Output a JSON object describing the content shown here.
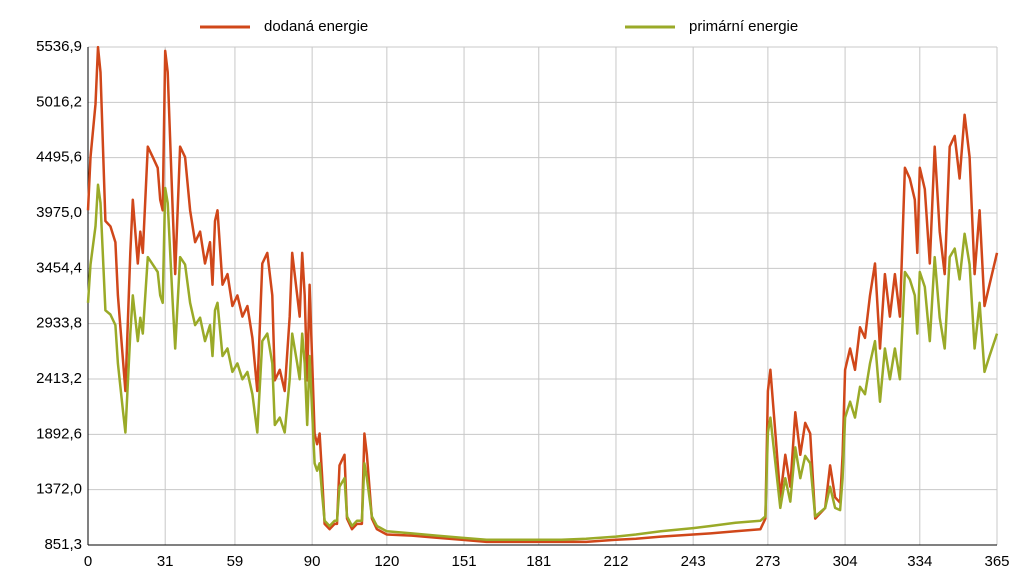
{
  "chart_data": {
    "type": "line",
    "x": [
      0,
      1,
      3,
      4,
      5,
      7,
      9,
      11,
      12,
      14,
      15,
      17,
      18,
      20,
      21,
      22,
      24,
      26,
      28,
      29,
      30,
      31,
      32,
      34,
      35,
      37,
      39,
      41,
      43,
      45,
      47,
      49,
      50,
      51,
      52,
      54,
      56,
      58,
      60,
      62,
      64,
      66,
      68,
      69,
      70,
      72,
      74,
      75,
      77,
      79,
      81,
      82,
      84,
      85,
      86,
      87,
      88,
      89,
      90,
      91,
      92,
      93,
      94,
      95,
      97,
      99,
      100,
      101,
      103,
      104,
      106,
      108,
      110,
      111,
      112,
      114,
      116,
      120,
      130,
      140,
      150,
      160,
      170,
      181,
      190,
      200,
      212,
      220,
      230,
      243,
      250,
      260,
      270,
      272,
      273,
      274,
      276,
      278,
      280,
      282,
      284,
      286,
      288,
      290,
      292,
      294,
      296,
      298,
      300,
      302,
      303,
      304,
      306,
      308,
      310,
      312,
      314,
      316,
      318,
      320,
      322,
      324,
      326,
      328,
      330,
      332,
      333,
      334,
      336,
      338,
      340,
      342,
      344,
      346,
      348,
      350,
      352,
      354,
      356,
      358,
      360,
      362,
      364,
      365
    ],
    "series": [
      {
        "name": "dodaná energie",
        "color": "#d0471a",
        "values": [
          4000,
          4500,
          5000,
          5536,
          5300,
          3900,
          3850,
          3700,
          3200,
          2600,
          2300,
          3600,
          4100,
          3500,
          3800,
          3600,
          4600,
          4500,
          4400,
          4100,
          4000,
          5500,
          5300,
          4000,
          3400,
          4600,
          4500,
          4000,
          3700,
          3800,
          3500,
          3700,
          3300,
          3900,
          4000,
          3300,
          3400,
          3100,
          3200,
          3000,
          3100,
          2800,
          2300,
          2900,
          3500,
          3600,
          3200,
          2400,
          2500,
          2300,
          3000,
          3600,
          3200,
          3000,
          3600,
          3200,
          2400,
          3300,
          2600,
          1900,
          1800,
          1900,
          1500,
          1050,
          1000,
          1050,
          1050,
          1600,
          1700,
          1100,
          1000,
          1050,
          1050,
          1900,
          1700,
          1100,
          1000,
          950,
          940,
          920,
          900,
          880,
          880,
          880,
          880,
          880,
          900,
          910,
          930,
          950,
          960,
          980,
          1000,
          1100,
          2300,
          2500,
          1900,
          1300,
          1700,
          1400,
          2100,
          1700,
          2000,
          1900,
          1100,
          1150,
          1200,
          1600,
          1300,
          1250,
          1700,
          2500,
          2700,
          2500,
          2900,
          2800,
          3200,
          3500,
          2700,
          3400,
          3000,
          3400,
          3000,
          4400,
          4300,
          4100,
          3600,
          4400,
          4200,
          3500,
          4600,
          3800,
          3400,
          4600,
          4700,
          4300,
          4900,
          4500,
          3400,
          4000,
          3100,
          3300,
          3500,
          3600
        ]
      },
      {
        "name": "primární energie",
        "color": "#9aaa28",
        "values": [
          3130,
          3490,
          3850,
          4240,
          4070,
          3060,
          3020,
          2920,
          2560,
          2120,
          1910,
          2840,
          3200,
          2770,
          2990,
          2840,
          3560,
          3490,
          3420,
          3200,
          3130,
          4210,
          4070,
          3130,
          2700,
          3560,
          3490,
          3130,
          2920,
          2990,
          2770,
          2920,
          2630,
          3060,
          3130,
          2630,
          2700,
          2480,
          2560,
          2410,
          2480,
          2270,
          1910,
          2340,
          2770,
          2840,
          2560,
          1980,
          2050,
          1910,
          2410,
          2840,
          2560,
          2410,
          2840,
          2560,
          1980,
          2630,
          2120,
          1620,
          1550,
          1620,
          1330,
          1080,
          1030,
          1080,
          1080,
          1400,
          1480,
          1120,
          1030,
          1080,
          1080,
          1620,
          1480,
          1120,
          1030,
          980,
          960,
          940,
          920,
          900,
          900,
          900,
          900,
          910,
          930,
          950,
          980,
          1010,
          1030,
          1060,
          1080,
          1120,
          1910,
          2050,
          1620,
          1200,
          1480,
          1260,
          1770,
          1480,
          1690,
          1620,
          1120,
          1160,
          1200,
          1400,
          1200,
          1180,
          1480,
          2050,
          2200,
          2050,
          2340,
          2270,
          2560,
          2770,
          2200,
          2700,
          2410,
          2700,
          2410,
          3420,
          3350,
          3200,
          2840,
          3420,
          3280,
          2770,
          3560,
          2990,
          2700,
          3560,
          3640,
          3350,
          3780,
          3490,
          2700,
          3130,
          2480,
          2630,
          2770,
          2840
        ]
      }
    ],
    "xlim": [
      0,
      365
    ],
    "xticks": [
      0,
      31,
      59,
      90,
      120,
      151,
      181,
      212,
      243,
      273,
      304,
      334,
      365
    ],
    "ylim": [
      851.3,
      5536.9
    ],
    "yticks": [
      {
        "value": 851.3,
        "label": "851,3"
      },
      {
        "value": 1372.0,
        "label": "1372,0"
      },
      {
        "value": 1892.6,
        "label": "1892,6"
      },
      {
        "value": 2413.2,
        "label": "2413,2"
      },
      {
        "value": 2933.8,
        "label": "2933,8"
      },
      {
        "value": 3454.4,
        "label": "3454,4"
      },
      {
        "value": 3975.0,
        "label": "3975,0"
      },
      {
        "value": 4495.6,
        "label": "4495,6"
      },
      {
        "value": 5016.2,
        "label": "5016,2"
      },
      {
        "value": 5536.9,
        "label": "5536,9"
      }
    ],
    "grid": true,
    "legend": "top"
  }
}
